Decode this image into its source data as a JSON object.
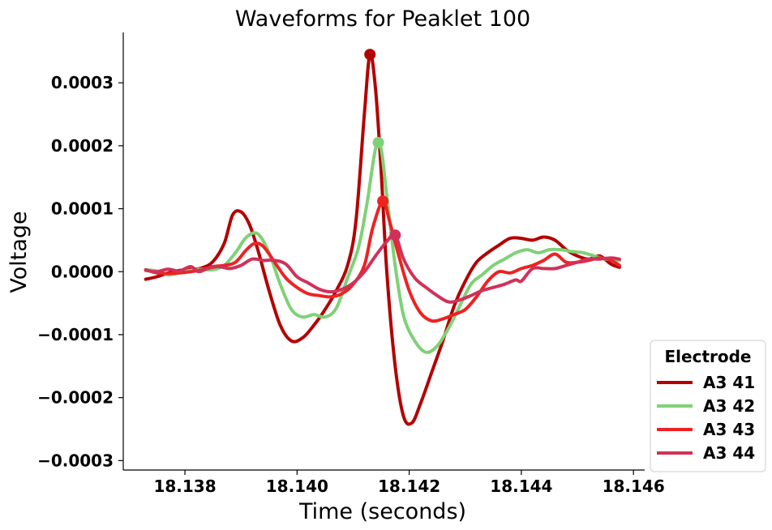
{
  "chart_data": {
    "type": "line",
    "title": "Waveforms for Peaklet 100",
    "xlabel": "Time (seconds)",
    "ylabel": "Voltage",
    "xlim": [
      18.1369,
      18.1462
    ],
    "ylim": [
      -0.000315,
      0.00038
    ],
    "xticks": [
      18.138,
      18.14,
      18.142,
      18.144,
      18.146
    ],
    "xtick_labels": [
      "18.138",
      "18.140",
      "18.142",
      "18.144",
      "18.146"
    ],
    "yticks": [
      0.0003,
      0.0002,
      0.0001,
      0.0,
      -0.0001,
      -0.0002,
      -0.0003
    ],
    "ytick_labels": [
      "0.0003",
      "0.0002",
      "0.0001",
      "0.0000",
      "−0.0001",
      "−0.0002",
      "−0.0003"
    ],
    "grid": false,
    "legend": {
      "title": "Electrode",
      "position": "outside-right-bottom"
    },
    "series": [
      {
        "name": "A3 41",
        "color": "#b30000",
        "peak": {
          "x": 18.1413,
          "y": 0.000345
        },
        "points": [
          [
            18.1373,
            -1.2e-05
          ],
          [
            18.1375,
            -8e-06
          ],
          [
            18.1377,
            -2e-06
          ],
          [
            18.1379,
            2e-06
          ],
          [
            18.1381,
            3e-06
          ],
          [
            18.1383,
            6e-06
          ],
          [
            18.1385,
            1.6e-05
          ],
          [
            18.1387,
            4.5e-05
          ],
          [
            18.13885,
            9e-05
          ],
          [
            18.139,
            9.5e-05
          ],
          [
            18.13915,
            7.5e-05
          ],
          [
            18.1393,
            3.5e-05
          ],
          [
            18.1395,
            -3e-05
          ],
          [
            18.1397,
            -8.5e-05
          ],
          [
            18.1399,
            -0.00011
          ],
          [
            18.1401,
            -0.000105
          ],
          [
            18.1403,
            -8.5e-05
          ],
          [
            18.1405,
            -6e-05
          ],
          [
            18.1407,
            -3e-05
          ],
          [
            18.1409,
            1e-05
          ],
          [
            18.14105,
            8e-05
          ],
          [
            18.1412,
            0.00025
          ],
          [
            18.1413,
            0.000345
          ],
          [
            18.1414,
            0.00029
          ],
          [
            18.1415,
            0.00016
          ],
          [
            18.1416,
            0.0
          ],
          [
            18.14175,
            -0.00015
          ],
          [
            18.1419,
            -0.00023
          ],
          [
            18.14205,
            -0.00024
          ],
          [
            18.1422,
            -0.00021
          ],
          [
            18.1424,
            -0.00016
          ],
          [
            18.1426,
            -0.00011
          ],
          [
            18.1428,
            -5.5e-05
          ],
          [
            18.143,
            -1.5e-05
          ],
          [
            18.1432,
            1.5e-05
          ],
          [
            18.1434,
            3e-05
          ],
          [
            18.1436,
            4.2e-05
          ],
          [
            18.1438,
            5.3e-05
          ],
          [
            18.144,
            5.3e-05
          ],
          [
            18.1442,
            5e-05
          ],
          [
            18.1444,
            5.5e-05
          ],
          [
            18.1446,
            5e-05
          ],
          [
            18.1448,
            3.5e-05
          ],
          [
            18.145,
            2.5e-05
          ],
          [
            18.1452,
            2e-05
          ],
          [
            18.1454,
            2.5e-05
          ],
          [
            18.1456,
            1.2e-05
          ],
          [
            18.14575,
            7e-06
          ]
        ]
      },
      {
        "name": "A3 42",
        "color": "#7fd177",
        "peak": {
          "x": 18.14145,
          "y": 0.000205
        },
        "points": [
          [
            18.1373,
            3e-06
          ],
          [
            18.1375,
            1e-06
          ],
          [
            18.1377,
            -5e-06
          ],
          [
            18.1379,
            -2e-06
          ],
          [
            18.1381,
            2e-06
          ],
          [
            18.1383,
            4e-06
          ],
          [
            18.1385,
            3e-06
          ],
          [
            18.1387,
            1e-05
          ],
          [
            18.1389,
            3e-05
          ],
          [
            18.1391,
            5.5e-05
          ],
          [
            18.1393,
            6e-05
          ],
          [
            18.1395,
            3e-05
          ],
          [
            18.1397,
            -2e-05
          ],
          [
            18.1399,
            -6e-05
          ],
          [
            18.1401,
            -7.2e-05
          ],
          [
            18.1403,
            -6.8e-05
          ],
          [
            18.1405,
            -7.2e-05
          ],
          [
            18.1407,
            -5.8e-05
          ],
          [
            18.1409,
            -1e-05
          ],
          [
            18.1411,
            4e-05
          ],
          [
            18.14125,
            0.00011
          ],
          [
            18.1414,
            0.000195
          ],
          [
            18.1415,
            0.000195
          ],
          [
            18.1416,
            0.00012
          ],
          [
            18.14175,
            1e-05
          ],
          [
            18.1419,
            -7e-05
          ],
          [
            18.1421,
            -0.00011
          ],
          [
            18.1423,
            -0.000128
          ],
          [
            18.1425,
            -0.000118
          ],
          [
            18.1427,
            -9e-05
          ],
          [
            18.1429,
            -5.5e-05
          ],
          [
            18.1431,
            -2e-05
          ],
          [
            18.1433,
            -5e-06
          ],
          [
            18.1435,
            1e-05
          ],
          [
            18.1437,
            2e-05
          ],
          [
            18.1439,
            3e-05
          ],
          [
            18.1441,
            3.5e-05
          ],
          [
            18.1443,
            3e-05
          ],
          [
            18.1445,
            3.5e-05
          ],
          [
            18.1447,
            3.5e-05
          ],
          [
            18.1449,
            3.2e-05
          ],
          [
            18.1451,
            3e-05
          ],
          [
            18.1453,
            2.5e-05
          ],
          [
            18.1455,
            2e-05
          ],
          [
            18.14575,
            1.8e-05
          ]
        ]
      },
      {
        "name": "A3 43",
        "color": "#ee2222",
        "peak": {
          "x": 18.14153,
          "y": 0.000112
        },
        "points": [
          [
            18.1373,
            3e-06
          ],
          [
            18.1375,
            -2e-06
          ],
          [
            18.1377,
            -3e-06
          ],
          [
            18.1379,
            -2e-06
          ],
          [
            18.1381,
            0.0
          ],
          [
            18.1383,
            3e-06
          ],
          [
            18.1385,
            8e-06
          ],
          [
            18.1387,
            1e-05
          ],
          [
            18.1389,
            1.5e-05
          ],
          [
            18.1391,
            3.5e-05
          ],
          [
            18.13925,
            4.5e-05
          ],
          [
            18.1394,
            4e-05
          ],
          [
            18.1396,
            1.5e-05
          ],
          [
            18.1398,
            -1e-05
          ],
          [
            18.14,
            -2.5e-05
          ],
          [
            18.1402,
            -3.5e-05
          ],
          [
            18.1404,
            -3.8e-05
          ],
          [
            18.1406,
            -4e-05
          ],
          [
            18.1408,
            -3.5e-05
          ],
          [
            18.141,
            -2e-05
          ],
          [
            18.1412,
            1e-05
          ],
          [
            18.14135,
            7e-05
          ],
          [
            18.14153,
            0.000112
          ],
          [
            18.14165,
            8e-05
          ],
          [
            18.1418,
            3e-05
          ],
          [
            18.142,
            -3e-05
          ],
          [
            18.1422,
            -6.5e-05
          ],
          [
            18.1424,
            -7.8e-05
          ],
          [
            18.1426,
            -7.5e-05
          ],
          [
            18.1428,
            -6.8e-05
          ],
          [
            18.143,
            -6e-05
          ],
          [
            18.1432,
            -4e-05
          ],
          [
            18.1434,
            -1.5e-05
          ],
          [
            18.1436,
            0.0
          ],
          [
            18.1438,
            -2e-06
          ],
          [
            18.144,
            5e-06
          ],
          [
            18.1442,
            1e-05
          ],
          [
            18.1444,
            1.8e-05
          ],
          [
            18.1446,
            2.8e-05
          ],
          [
            18.1448,
            1.5e-05
          ],
          [
            18.145,
            1.5e-05
          ],
          [
            18.1452,
            1.8e-05
          ],
          [
            18.1454,
            2.2e-05
          ],
          [
            18.1456,
            1.8e-05
          ],
          [
            18.14575,
            1e-05
          ]
        ]
      },
      {
        "name": "A3 44",
        "color": "#d0315a",
        "peak": {
          "x": 18.14175,
          "y": 5.8e-05
        },
        "points": [
          [
            18.1373,
            2e-06
          ],
          [
            18.1375,
            0.0
          ],
          [
            18.1377,
            4e-06
          ],
          [
            18.1379,
            1e-06
          ],
          [
            18.1381,
            8e-06
          ],
          [
            18.13825,
            0.0
          ],
          [
            18.1384,
            5e-06
          ],
          [
            18.1386,
            8e-06
          ],
          [
            18.1388,
            5e-06
          ],
          [
            18.139,
            1e-05
          ],
          [
            18.1392,
            2e-05
          ],
          [
            18.1394,
            1.8e-05
          ],
          [
            18.1396,
            1.8e-05
          ],
          [
            18.1398,
            1.2e-05
          ],
          [
            18.14,
            -8e-06
          ],
          [
            18.1402,
            -1.8e-05
          ],
          [
            18.1404,
            -2.8e-05
          ],
          [
            18.1406,
            -3.2e-05
          ],
          [
            18.1408,
            -2.8e-05
          ],
          [
            18.141,
            -1.8e-05
          ],
          [
            18.1412,
            0.0
          ],
          [
            18.1414,
            2.5e-05
          ],
          [
            18.1416,
            4.8e-05
          ],
          [
            18.14175,
            5.8e-05
          ],
          [
            18.1419,
            2e-05
          ],
          [
            18.1421,
            -1e-05
          ],
          [
            18.1423,
            -2.5e-05
          ],
          [
            18.1425,
            -3.8e-05
          ],
          [
            18.1427,
            -4.8e-05
          ],
          [
            18.1429,
            -4.5e-05
          ],
          [
            18.1431,
            -3.8e-05
          ],
          [
            18.1433,
            -3e-05
          ],
          [
            18.1435,
            -2.5e-05
          ],
          [
            18.1437,
            -2e-05
          ],
          [
            18.1439,
            -1.3e-05
          ],
          [
            18.144,
            -1.5e-05
          ],
          [
            18.1442,
            5e-06
          ],
          [
            18.1444,
            5e-06
          ],
          [
            18.1446,
            5e-06
          ],
          [
            18.1448,
            1e-05
          ],
          [
            18.145,
            1.5e-05
          ],
          [
            18.1452,
            2e-05
          ],
          [
            18.1454,
            2e-05
          ],
          [
            18.1456,
            2.2e-05
          ],
          [
            18.14575,
            2e-05
          ]
        ]
      }
    ]
  }
}
